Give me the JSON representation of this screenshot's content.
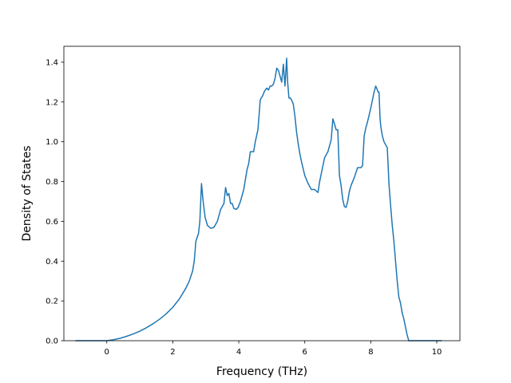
{
  "chart_data": {
    "type": "line",
    "title": "",
    "xlabel": "Frequency (THz)",
    "ylabel": "Density of States",
    "xlim": [
      -1.3,
      10.7
    ],
    "ylim": [
      0.0,
      1.48
    ],
    "grid": false,
    "x_ticks": [
      0,
      2,
      4,
      6,
      8,
      10
    ],
    "x_tick_labels": [
      "0",
      "2",
      "4",
      "6",
      "8",
      "10"
    ],
    "y_ticks": [
      0.0,
      0.2,
      0.4,
      0.6,
      0.8,
      1.0,
      1.2,
      1.4
    ],
    "y_tick_labels": [
      "0.0",
      "0.2",
      "0.4",
      "0.6",
      "0.8",
      "1.0",
      "1.2",
      "1.4"
    ],
    "line_color": "#1f77b4",
    "series": [
      {
        "x": [
          -0.95,
          0.0,
          0.2,
          0.4,
          0.6,
          0.8,
          1.0,
          1.2,
          1.4,
          1.6,
          1.8,
          2.0,
          2.2,
          2.4,
          2.5,
          2.6,
          2.65,
          2.7,
          2.78,
          2.82,
          2.87,
          2.92,
          2.98,
          3.05,
          3.15,
          3.25,
          3.35,
          3.45,
          3.55,
          3.6,
          3.65,
          3.7,
          3.75,
          3.8,
          3.85,
          3.92,
          3.98,
          4.05,
          4.15,
          4.25,
          4.3,
          4.35,
          4.4,
          4.45,
          4.5,
          4.58,
          4.65,
          4.68,
          4.72,
          4.78,
          4.85,
          4.9,
          4.95,
          5.0,
          5.05,
          5.1,
          5.15,
          5.2,
          5.25,
          5.3,
          5.35,
          5.4,
          5.45,
          5.48,
          5.52,
          5.56,
          5.6,
          5.65,
          5.7,
          5.75,
          5.8,
          5.85,
          5.9,
          6.0,
          6.1,
          6.2,
          6.3,
          6.4,
          6.45,
          6.5,
          6.55,
          6.6,
          6.7,
          6.8,
          6.85,
          6.9,
          6.95,
          7.0,
          7.05,
          7.1,
          7.15,
          7.2,
          7.25,
          7.3,
          7.35,
          7.4,
          7.5,
          7.6,
          7.7,
          7.75,
          7.8,
          7.85,
          7.9,
          8.0,
          8.1,
          8.15,
          8.2,
          8.22,
          8.25,
          8.28,
          8.3,
          8.35,
          8.4,
          8.5,
          8.55,
          8.6,
          8.65,
          8.7,
          8.75,
          8.8,
          8.85,
          8.9,
          8.95,
          9.0,
          9.05,
          9.1,
          9.15,
          9.2,
          9.25,
          9.3,
          9.5,
          9.8,
          10.0,
          10.15
        ],
        "y": [
          0.0,
          0.0,
          0.005,
          0.012,
          0.022,
          0.034,
          0.048,
          0.065,
          0.085,
          0.108,
          0.135,
          0.168,
          0.21,
          0.265,
          0.3,
          0.35,
          0.4,
          0.5,
          0.54,
          0.6,
          0.79,
          0.7,
          0.62,
          0.58,
          0.565,
          0.57,
          0.6,
          0.66,
          0.69,
          0.77,
          0.73,
          0.74,
          0.69,
          0.69,
          0.665,
          0.66,
          0.67,
          0.7,
          0.76,
          0.86,
          0.89,
          0.95,
          0.95,
          0.95,
          1.0,
          1.06,
          1.21,
          1.22,
          1.23,
          1.255,
          1.27,
          1.26,
          1.28,
          1.28,
          1.29,
          1.32,
          1.37,
          1.36,
          1.33,
          1.3,
          1.39,
          1.28,
          1.42,
          1.3,
          1.22,
          1.22,
          1.21,
          1.19,
          1.13,
          1.05,
          0.99,
          0.94,
          0.9,
          0.83,
          0.79,
          0.76,
          0.76,
          0.745,
          0.8,
          0.84,
          0.88,
          0.92,
          0.95,
          1.01,
          1.115,
          1.09,
          1.06,
          1.06,
          0.83,
          0.78,
          0.71,
          0.675,
          0.67,
          0.7,
          0.75,
          0.78,
          0.82,
          0.87,
          0.87,
          0.88,
          1.03,
          1.07,
          1.1,
          1.17,
          1.25,
          1.28,
          1.26,
          1.25,
          1.25,
          1.12,
          1.08,
          1.03,
          1.0,
          0.97,
          0.79,
          0.68,
          0.58,
          0.5,
          0.4,
          0.3,
          0.22,
          0.19,
          0.14,
          0.11,
          0.07,
          0.03,
          0.0,
          0.0,
          0.0,
          0.0,
          0.0,
          0.0,
          0.0,
          0.0
        ]
      }
    ]
  }
}
